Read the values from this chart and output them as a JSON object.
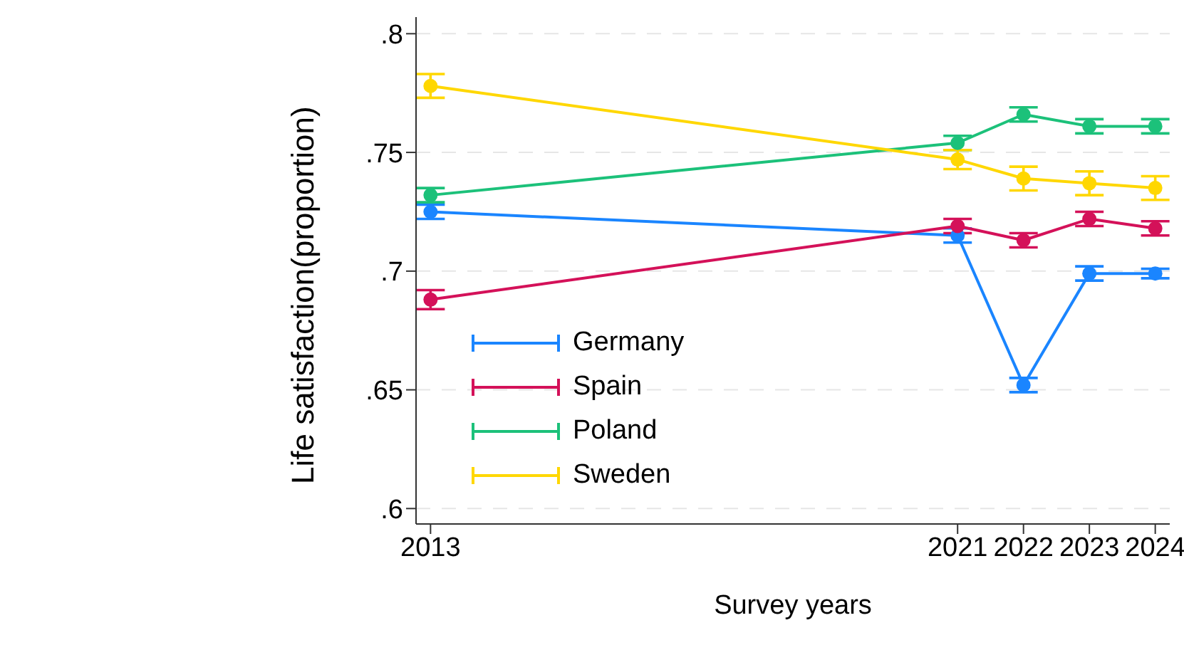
{
  "chart_data": {
    "type": "line",
    "xlabel": "Survey years",
    "ylabel": "Life satisfaction(proportion)",
    "x": [
      2013,
      2021,
      2022,
      2023,
      2024
    ],
    "xlim": [
      2012.78,
      2024.22
    ],
    "xticks": [
      2013,
      2021,
      2022,
      2023,
      2024
    ],
    "ylim": [
      0.5935,
      0.807
    ],
    "yticks": [
      {
        "value": 0.6,
        "label": ".6"
      },
      {
        "value": 0.65,
        "label": ".65"
      },
      {
        "value": 0.7,
        "label": ".7"
      },
      {
        "value": 0.75,
        "label": ".75"
      },
      {
        "value": 0.8,
        "label": ".8"
      }
    ],
    "grid": "y",
    "legend": "bottom",
    "marker": "circle",
    "line_style": "solid",
    "series": [
      {
        "name": "Germany",
        "color": "#1a85ff",
        "values": [
          0.725,
          0.715,
          0.652,
          0.699,
          0.699
        ],
        "errors": [
          0.003,
          0.003,
          0.003,
          0.003,
          0.002
        ]
      },
      {
        "name": "Spain",
        "color": "#d41159",
        "values": [
          0.688,
          0.719,
          0.713,
          0.722,
          0.718
        ],
        "errors": [
          0.004,
          0.003,
          0.003,
          0.003,
          0.003
        ]
      },
      {
        "name": "Poland",
        "color": "#1cc17a",
        "values": [
          0.732,
          0.754,
          0.766,
          0.761,
          0.761
        ],
        "errors": [
          0.003,
          0.003,
          0.003,
          0.003,
          0.003
        ]
      },
      {
        "name": "Sweden",
        "color": "#ffd700",
        "values": [
          0.778,
          0.747,
          0.739,
          0.737,
          0.735
        ],
        "errors": [
          0.005,
          0.004,
          0.005,
          0.005,
          0.005
        ]
      }
    ]
  }
}
